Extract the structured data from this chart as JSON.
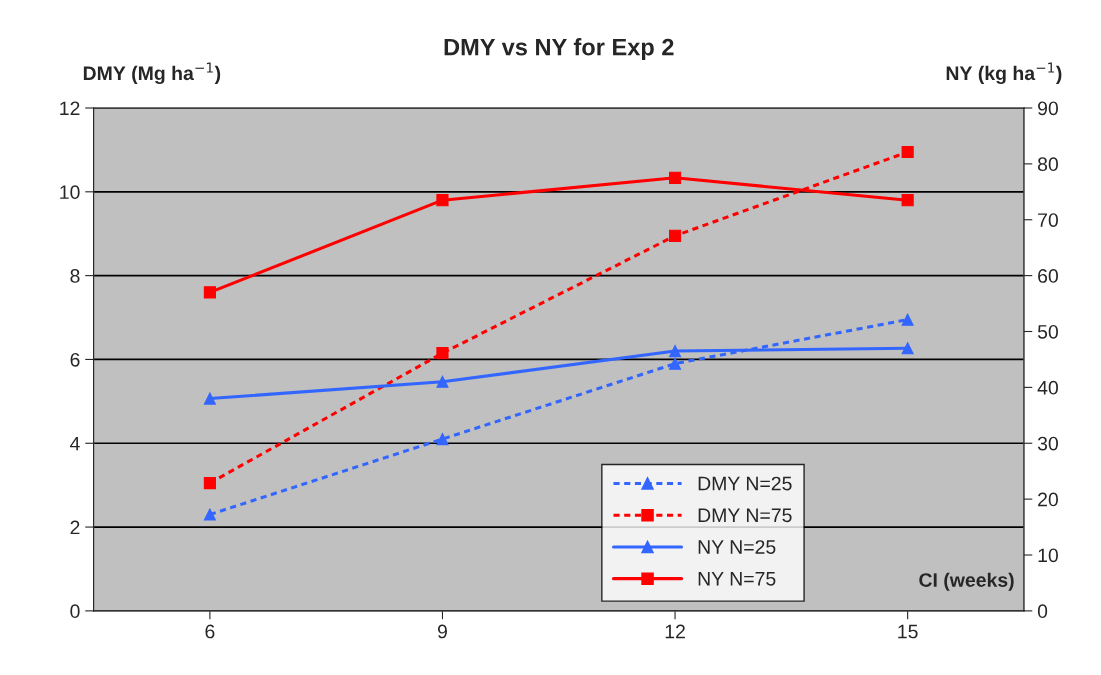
{
  "chart_data": {
    "type": "line",
    "title": "DMY vs NY for Exp 2",
    "xlabel": "CI (weeks)",
    "ylabel": "DMY (Mg ha$^{−1}$)",
    "y2label": "NY (kg ha$^{−1}$)",
    "categories": [
      "6",
      "9",
      "12",
      "15"
    ],
    "series": [
      {
        "name": "DMY N=25",
        "color": "#3366ff",
        "values": [
          2.3,
          4.1,
          5.9,
          6.95
        ],
        "axis": "y",
        "line_style": "dotted",
        "marker": "triangle"
      },
      {
        "name": "DMY N=75",
        "color": "#ff0000",
        "values": [
          3.05,
          6.15,
          8.95,
          10.95
        ],
        "axis": "y",
        "line_style": "dotted",
        "marker": "square"
      },
      {
        "name": "NY N=25",
        "color": "#3366ff",
        "values": [
          38,
          41,
          46.5,
          47
        ],
        "axis": "y2",
        "line_style": "solid",
        "marker": "triangle"
      },
      {
        "name": "NY N=75",
        "color": "#ff0000",
        "values": [
          57,
          73.5,
          77.5,
          73.5
        ],
        "axis": "y2",
        "line_style": "solid",
        "marker": "square"
      }
    ],
    "ylim": [
      0,
      12
    ],
    "yticks": [
      0,
      2,
      4,
      6,
      8,
      10,
      12
    ],
    "y2lim": [
      0,
      90
    ],
    "y2ticks": [
      0,
      10,
      20,
      30,
      40,
      50,
      60,
      70,
      80,
      90
    ],
    "grid": "y",
    "legend": "bottom"
  }
}
